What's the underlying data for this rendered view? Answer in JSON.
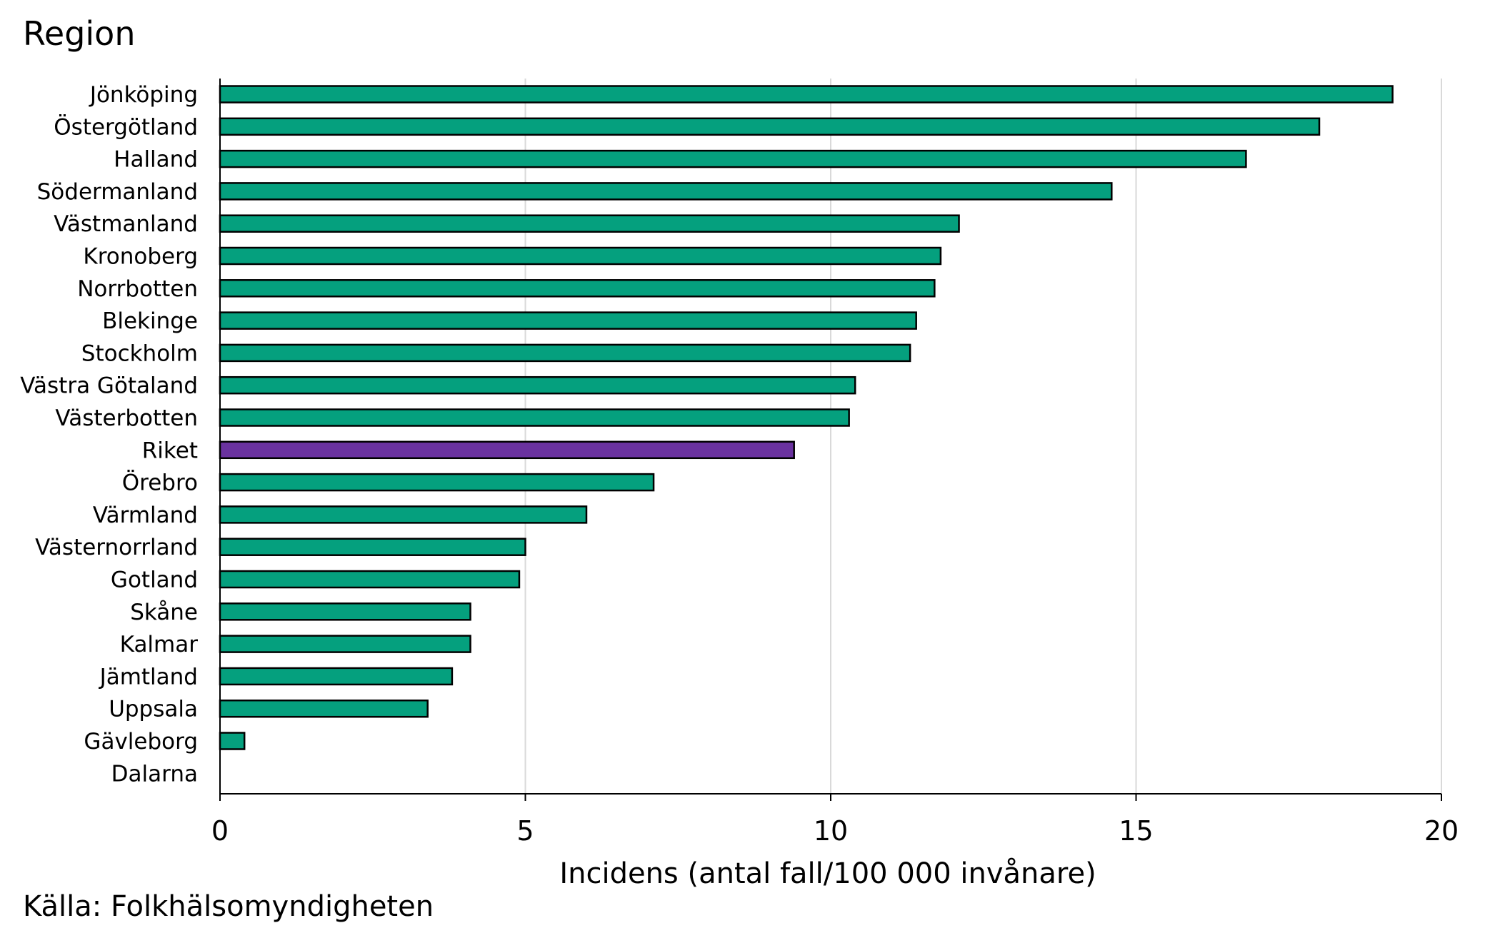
{
  "header": {
    "title": "Region"
  },
  "footer": {
    "source": "Källa: Folkhälsomyndigheten"
  },
  "colors": {
    "bar": "#05a07e",
    "highlight": "#6a329f",
    "outline": "#000000",
    "grid": "#d9d9d9"
  },
  "chart_data": {
    "type": "bar",
    "orientation": "horizontal",
    "title": "Region",
    "xlabel": "Incidens (antal fall/100 000 invånare)",
    "xlim": [
      0,
      20
    ],
    "xticks": [
      0,
      5,
      10,
      15,
      20
    ],
    "grid": true,
    "highlight_category": "Riket",
    "categories": [
      "Jönköping",
      "Östergötland",
      "Halland",
      "Södermanland",
      "Västmanland",
      "Kronoberg",
      "Norrbotten",
      "Blekinge",
      "Stockholm",
      "Västra Götaland",
      "Västerbotten",
      "Riket",
      "Örebro",
      "Värmland",
      "Västernorrland",
      "Gotland",
      "Skåne",
      "Kalmar",
      "Jämtland",
      "Uppsala",
      "Gävleborg",
      "Dalarna"
    ],
    "values": [
      19.2,
      18.0,
      16.8,
      14.6,
      12.1,
      11.8,
      11.7,
      11.4,
      11.3,
      10.4,
      10.3,
      9.4,
      7.1,
      6.0,
      5.0,
      4.9,
      4.1,
      4.1,
      3.8,
      3.4,
      0.4,
      0.0
    ]
  }
}
